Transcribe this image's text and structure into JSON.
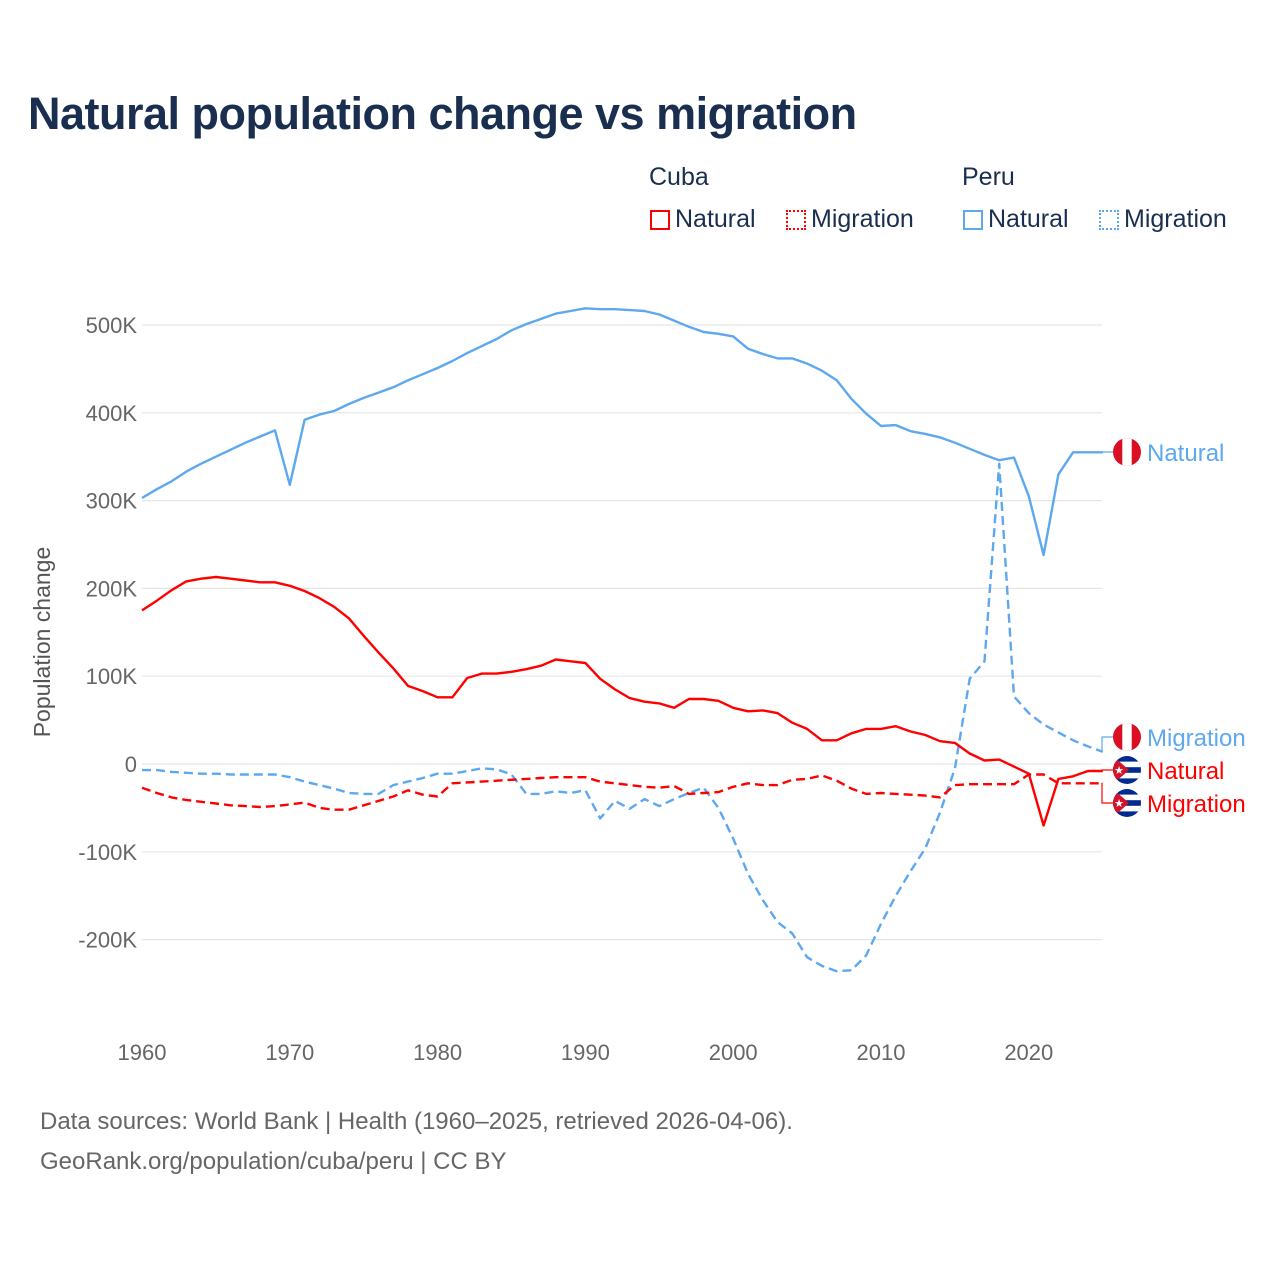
{
  "title": "Natural population change vs migration",
  "legend": {
    "groups": [
      {
        "name": "Cuba",
        "items": [
          {
            "label": "Natural",
            "style": "solid",
            "color": "#ff0000"
          },
          {
            "label": "Migration",
            "style": "dotted",
            "color": "#ff0000"
          }
        ]
      },
      {
        "name": "Peru",
        "items": [
          {
            "label": "Natural",
            "style": "solid",
            "color": "#5da8ee"
          },
          {
            "label": "Migration",
            "style": "dotted",
            "color": "#5da8ee"
          }
        ]
      }
    ]
  },
  "footer": {
    "line1": "Data sources: World Bank | Health (1960–2025, retrieved 2026-04-06).",
    "line2": "GeoRank.org/population/cuba/peru | CC BY"
  },
  "chart_data": {
    "type": "line",
    "title": "Natural population change vs migration",
    "xlabel": "",
    "ylabel": "Population change",
    "xlim": [
      1960,
      2025
    ],
    "ylim": [
      -260000,
      540000
    ],
    "grid": true,
    "x_ticks": [
      1960,
      1970,
      1980,
      1990,
      2000,
      2010,
      2020
    ],
    "x_tick_labels": [
      "1960",
      "1970",
      "1980",
      "1990",
      "2000",
      "2010",
      "2020"
    ],
    "y_ticks": [
      500000,
      400000,
      300000,
      200000,
      100000,
      0,
      -100000,
      -200000
    ],
    "y_tick_labels": [
      "500K",
      "400K",
      "300K",
      "200K",
      "100K",
      "0",
      "-100K",
      "-200K"
    ],
    "x_start": 1960,
    "series": [
      {
        "name": "Peru Natural",
        "country": "Peru",
        "label": "Natural",
        "color": "#5da8ee",
        "dash": "solid",
        "values_k": [
          303,
          313,
          322,
          333,
          342,
          350,
          358,
          366,
          373,
          380,
          318,
          392,
          398,
          402,
          410,
          417,
          423,
          429,
          437,
          444,
          451,
          459,
          468,
          476,
          484,
          494,
          501,
          507,
          513,
          516,
          519,
          518,
          518,
          517,
          516,
          512,
          505,
          498,
          492,
          490,
          487,
          473,
          467,
          462,
          462,
          456,
          448,
          437,
          416,
          399,
          385,
          386,
          379,
          376,
          372,
          366,
          359,
          352,
          346,
          349,
          305,
          238,
          330,
          355,
          355,
          355
        ]
      },
      {
        "name": "Peru Migration",
        "country": "Peru",
        "label": "Migration",
        "color": "#5da8ee",
        "dash": "dashed",
        "values_k": [
          -7,
          -7,
          -9,
          -10,
          -11,
          -11,
          -12,
          -12,
          -12,
          -12,
          -15,
          -20,
          -24,
          -28,
          -33,
          -34,
          -34,
          -24,
          -20,
          -16,
          -11,
          -11,
          -8,
          -5,
          -6,
          -12,
          -34,
          -34,
          -31,
          -33,
          -30,
          -62,
          -42,
          -51,
          -40,
          -48,
          -40,
          -33,
          -27,
          -50,
          -85,
          -125,
          -155,
          -180,
          -193,
          -220,
          -230,
          -236,
          -235,
          -218,
          -182,
          -150,
          -122,
          -96,
          -55,
          -5,
          97,
          117,
          342,
          77,
          58,
          45,
          36,
          27,
          20,
          14
        ]
      },
      {
        "name": "Cuba Natural",
        "country": "Cuba",
        "label": "Natural",
        "color": "#ff0000",
        "dash": "solid",
        "values_k": [
          175,
          186,
          198,
          208,
          211,
          213,
          211,
          209,
          207,
          207,
          203,
          197,
          189,
          179,
          166,
          146,
          127,
          109,
          89,
          83,
          76,
          76,
          98,
          103,
          103,
          105,
          108,
          112,
          119,
          117,
          115,
          97,
          85,
          75,
          71,
          69,
          64,
          74,
          74,
          72,
          64,
          60,
          61,
          58,
          47,
          40,
          27,
          27,
          35,
          40,
          40,
          43,
          37,
          33,
          26,
          24,
          12,
          4,
          5,
          -3,
          -11,
          -70,
          -17,
          -14,
          -8,
          -8
        ]
      },
      {
        "name": "Cuba Migration",
        "country": "Cuba",
        "label": "Migration",
        "color": "#ff0000",
        "dash": "dashed",
        "values_k": [
          -27,
          -33,
          -38,
          -41,
          -43,
          -45,
          -47,
          -48,
          -49,
          -48,
          -46,
          -44,
          -50,
          -52,
          -52,
          -47,
          -42,
          -37,
          -30,
          -35,
          -37,
          -22,
          -21,
          -20,
          -19,
          -18,
          -17,
          -16,
          -15,
          -15,
          -15,
          -20,
          -22,
          -24,
          -26,
          -27,
          -25,
          -34,
          -33,
          -32,
          -26,
          -22,
          -24,
          -24,
          -18,
          -17,
          -13,
          -19,
          -28,
          -34,
          -33,
          -34,
          -35,
          -36,
          -38,
          -24,
          -23,
          -23,
          -23,
          -23,
          -12,
          -12,
          -22,
          -22,
          -22,
          -22
        ]
      }
    ]
  }
}
